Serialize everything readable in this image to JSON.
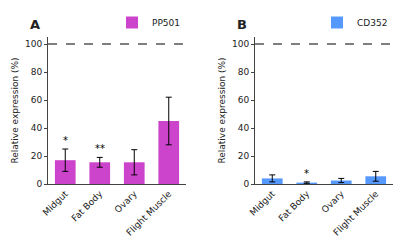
{
  "chart_data": [
    {
      "type": "bar",
      "label": "A",
      "ylabel": "Relative expression (%)",
      "categories": [
        "Midgut",
        "Fat Body",
        "Ovary",
        "Flight Muscle"
      ],
      "series": [
        {
          "name": "PP501",
          "color": "#CC44CC",
          "values": [
            17.0,
            15.5,
            15.5,
            45.0
          ],
          "errors": [
            8.0,
            3.5,
            9.0,
            17.0
          ]
        }
      ],
      "annotations": [
        {
          "category": "Midgut",
          "text": "*"
        },
        {
          "category": "Fat Body",
          "text": "**"
        }
      ],
      "reference_line": {
        "y": 100,
        "line_style": "dashed"
      },
      "ylim": [
        0,
        105
      ],
      "yticks": [
        0,
        20,
        40,
        60,
        80,
        100
      ],
      "legend": "upper right",
      "grid": false
    },
    {
      "type": "bar",
      "label": "B",
      "ylabel": "Relative expression (%)",
      "categories": [
        "Midgut",
        "Fat Body",
        "Ovary",
        "Flight Muscle"
      ],
      "series": [
        {
          "name": "CD352",
          "color": "#5599FF",
          "values": [
            4.0,
            1.0,
            2.5,
            5.5
          ],
          "errors": [
            2.5,
            0.5,
            1.5,
            3.5
          ]
        }
      ],
      "annotations": [
        {
          "category": "Fat Body",
          "text": "*"
        }
      ],
      "reference_line": {
        "y": 100,
        "line_style": "dashed"
      },
      "ylim": [
        0,
        105
      ],
      "yticks": [
        0,
        20,
        40,
        60,
        80,
        100
      ],
      "legend": "upper right",
      "grid": false
    }
  ]
}
